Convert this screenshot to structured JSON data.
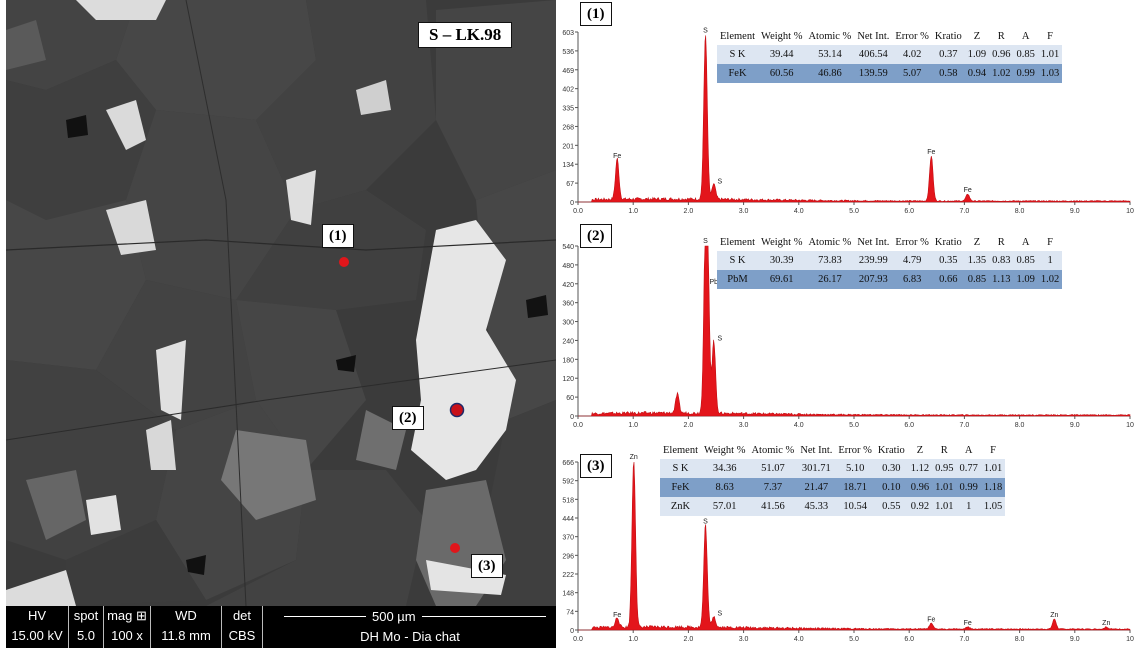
{
  "sem": {
    "sample_title": "S – LK.98",
    "points": [
      "(1)",
      "(2)",
      "(3)"
    ],
    "databar": {
      "columns": [
        {
          "header": "HV",
          "value": "15.00 kV"
        },
        {
          "header": "spot",
          "value": "5.0"
        },
        {
          "header": "mag ⊞",
          "value": "100 x"
        },
        {
          "header": "WD",
          "value": "11.8 mm"
        },
        {
          "header": "det",
          "value": "CBS"
        }
      ],
      "scale": "500 µm",
      "footer": "DH Mo - Dia chat"
    }
  },
  "chart_data": [
    {
      "type": "line",
      "label": "(1)",
      "x_ticks": [
        "0.0",
        "1.0",
        "2.0",
        "3.0",
        "4.0",
        "5.0",
        "6.0",
        "7.0",
        "8.0",
        "9.0",
        "10"
      ],
      "xlim": [
        0,
        10
      ],
      "y_ticks": [
        "603",
        "536",
        "469",
        "402",
        "335",
        "268",
        "201",
        "134",
        "67",
        "0"
      ],
      "ylim": [
        0,
        603
      ],
      "peaks": [
        {
          "label": "Fe",
          "x": 0.71,
          "y": 145
        },
        {
          "label": "S",
          "x": 2.31,
          "y": 590
        },
        {
          "label": "S",
          "x": 2.46,
          "y": 55
        },
        {
          "label": "Fe",
          "x": 6.4,
          "y": 160
        },
        {
          "label": "Fe",
          "x": 7.06,
          "y": 25
        }
      ],
      "table": {
        "headers": [
          "Element",
          "Weight %",
          "Atomic %",
          "Net Int.",
          "Error %",
          "Kratio",
          "Z",
          "R",
          "A",
          "F"
        ],
        "rows": [
          [
            "S K",
            "39.44",
            "53.14",
            "406.54",
            "4.02",
            "0.37",
            "1.09",
            "0.96",
            "0.85",
            "1.01"
          ],
          [
            "FeK",
            "60.56",
            "46.86",
            "139.59",
            "5.07",
            "0.58",
            "0.94",
            "1.02",
            "0.99",
            "1.03"
          ]
        ]
      }
    },
    {
      "type": "line",
      "label": "(2)",
      "x_ticks": [
        "0.0",
        "1.0",
        "2.0",
        "3.0",
        "4.0",
        "5.0",
        "6.0",
        "7.0",
        "8.0",
        "9.0",
        "10"
      ],
      "xlim": [
        0,
        10
      ],
      "y_ticks": [
        "540",
        "480",
        "420",
        "360",
        "300",
        "240",
        "180",
        "120",
        "60",
        "0"
      ],
      "ylim": [
        0,
        540
      ],
      "peaks": [
        {
          "label": "S",
          "x": 2.31,
          "y": 540
        },
        {
          "label": "Pb",
          "x": 2.35,
          "y": 410
        },
        {
          "label": "S",
          "x": 2.46,
          "y": 230
        },
        {
          "label": "",
          "x": 1.8,
          "y": 60
        }
      ],
      "table": {
        "headers": [
          "Element",
          "Weight %",
          "Atomic %",
          "Net Int.",
          "Error %",
          "Kratio",
          "Z",
          "R",
          "A",
          "F"
        ],
        "rows": [
          [
            "S K",
            "30.39",
            "73.83",
            "239.99",
            "4.79",
            "0.35",
            "1.35",
            "0.83",
            "0.85",
            "1"
          ],
          [
            "PbM",
            "69.61",
            "26.17",
            "207.93",
            "6.83",
            "0.66",
            "0.85",
            "1.13",
            "1.09",
            "1.02"
          ]
        ]
      }
    },
    {
      "type": "line",
      "label": "(3)",
      "x_ticks": [
        "0.0",
        "1.0",
        "2.0",
        "3.0",
        "4.0",
        "5.0",
        "6.0",
        "7.0",
        "8.0",
        "9.0",
        "10"
      ],
      "xlim": [
        0,
        10
      ],
      "y_ticks": [
        "666",
        "592",
        "518",
        "444",
        "370",
        "296",
        "222",
        "148",
        "74",
        "0"
      ],
      "ylim": [
        0,
        666
      ],
      "peaks": [
        {
          "label": "Fe",
          "x": 0.71,
          "y": 40
        },
        {
          "label": "Zn",
          "x": 1.01,
          "y": 666
        },
        {
          "label": "S",
          "x": 2.31,
          "y": 410
        },
        {
          "label": "S",
          "x": 2.46,
          "y": 45
        },
        {
          "label": "Fe",
          "x": 6.4,
          "y": 22
        },
        {
          "label": "Fe",
          "x": 7.06,
          "y": 8
        },
        {
          "label": "Zn",
          "x": 8.63,
          "y": 40
        },
        {
          "label": "Zn",
          "x": 9.57,
          "y": 8
        }
      ],
      "table": {
        "headers": [
          "Element",
          "Weight %",
          "Atomic %",
          "Net Int.",
          "Error %",
          "Kratio",
          "Z",
          "R",
          "A",
          "F"
        ],
        "rows": [
          [
            "S K",
            "34.36",
            "51.07",
            "301.71",
            "5.10",
            "0.30",
            "1.12",
            "0.95",
            "0.77",
            "1.01"
          ],
          [
            "FeK",
            "8.63",
            "7.37",
            "21.47",
            "18.71",
            "0.10",
            "0.96",
            "1.01",
            "0.99",
            "1.18"
          ],
          [
            "ZnK",
            "57.01",
            "41.56",
            "45.33",
            "10.54",
            "0.55",
            "0.92",
            "1.01",
            "1",
            "1.05"
          ]
        ]
      }
    }
  ]
}
